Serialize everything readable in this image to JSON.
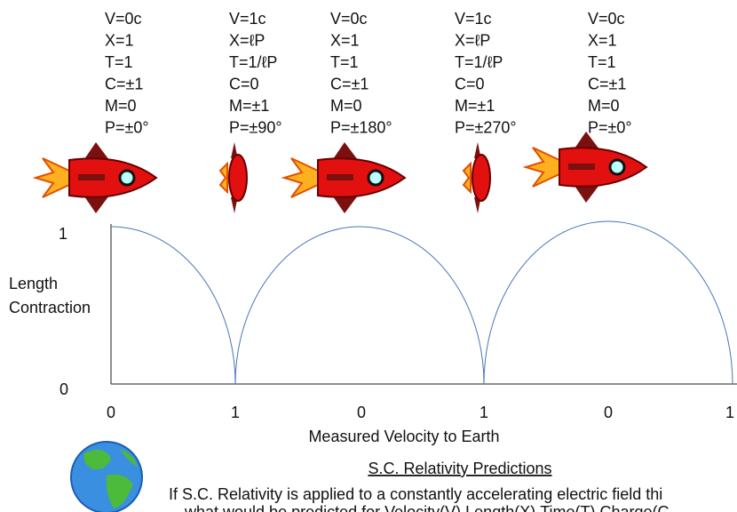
{
  "states": [
    {
      "lines": [
        "V=0c",
        "X=1",
        "T=1",
        "C=±1",
        "M=0",
        "P=±0°"
      ]
    },
    {
      "lines": [
        "V=1c",
        "X=ℓP",
        "T=1/ℓP",
        "C=0",
        "M=±1",
        "P=±90°"
      ]
    },
    {
      "lines": [
        "V=0c",
        "X=1",
        "T=1",
        "C=±1",
        "M=0",
        "P=±180°"
      ]
    },
    {
      "lines": [
        "V=1c",
        "X=ℓP",
        "T=1/ℓP",
        "C=0",
        "M=±1",
        "P=±270°"
      ]
    },
    {
      "lines": [
        "V=0c",
        "X=1",
        "T=1",
        "C=±1",
        "M=0",
        "P=±0°"
      ]
    }
  ],
  "plot": {
    "y_axis_title": [
      "Length",
      "Contraction"
    ],
    "y_tick_labels": [
      "1",
      "0"
    ],
    "x_tick_labels": [
      "0",
      "1",
      "0",
      "1",
      "0",
      "1"
    ],
    "x_axis_title": "Measured Velocity to Earth"
  },
  "footer": {
    "heading": "S.C. Relativity Predictions",
    "lines": [
      "If S.C. Relativity is applied to a constantly  accelerating electric field thi",
      "what would be predicted for Velocity(V),Length(X),Time(T),Charge(C"
    ]
  }
}
